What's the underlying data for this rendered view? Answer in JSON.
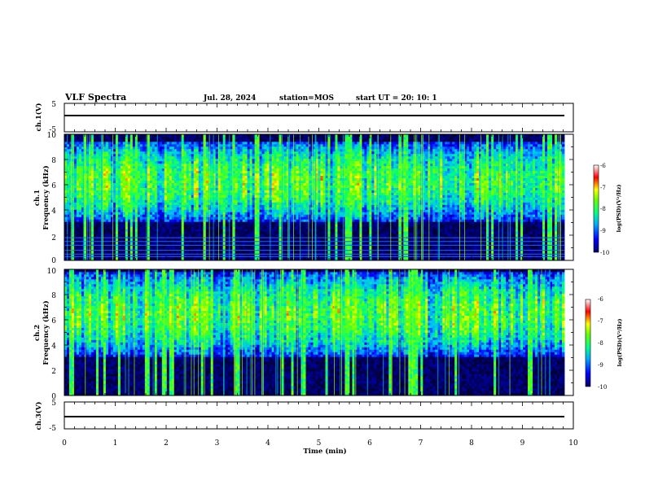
{
  "header": {
    "title": "VLF Spectra",
    "date": "Jul. 28, 2024",
    "station": "station=MOS",
    "start": "start UT =  20: 10: 1"
  },
  "chart_data": [
    {
      "type": "line",
      "name": "voltage-panel-ch1",
      "ylabel": "ch.1(V)",
      "ylim": [
        -5,
        5
      ],
      "yticks": [
        "5",
        "-5"
      ],
      "xlim": [
        0,
        10
      ],
      "x": [
        0,
        10
      ],
      "series": [
        {
          "values": [
            0,
            0
          ]
        }
      ]
    },
    {
      "type": "heatmap",
      "name": "spectrogram-ch1",
      "ylabel": [
        "ch.1",
        "Frequency (kHz)"
      ],
      "xlim": [
        0,
        10
      ],
      "ylim": [
        0,
        10
      ],
      "yticks": [
        "0",
        "2",
        "4",
        "6",
        "8",
        "10"
      ],
      "colorbar": {
        "label": "log(PSD)(V²/Hz)",
        "range": [
          -10,
          -6
        ],
        "ticks": [
          "-6",
          "-7",
          "-8",
          "-9",
          "-10"
        ]
      },
      "band_khz": [
        3.0,
        9.5
      ],
      "peak_khz": 6.3,
      "tone_lines_khz": [
        0.3,
        0.5,
        0.8,
        1.2,
        1.5,
        1.8
      ]
    },
    {
      "type": "heatmap",
      "name": "spectrogram-ch2",
      "ylabel": [
        "ch.2",
        "Frequency (kHz)"
      ],
      "xlim": [
        0,
        10
      ],
      "ylim": [
        0,
        10
      ],
      "yticks": [
        "0",
        "2",
        "4",
        "6",
        "8",
        "10"
      ],
      "colorbar": {
        "label": "log(PSD)(V²/Hz)",
        "range": [
          -10,
          -6
        ],
        "ticks": [
          "-6",
          "-7",
          "-8",
          "-9",
          "-10"
        ]
      },
      "band_khz": [
        3.0,
        9.8
      ],
      "peak_khz": 6.5,
      "tone_lines_khz": []
    },
    {
      "type": "line",
      "name": "voltage-panel-ch3",
      "ylabel": "ch.3(V)",
      "ylim": [
        -5,
        5
      ],
      "yticks": [
        "5",
        "-5"
      ],
      "xlim": [
        0,
        10
      ],
      "x": [
        0,
        10
      ],
      "series": [
        {
          "values": [
            0,
            0
          ]
        }
      ],
      "xlabel": "Time (min)",
      "xticks": [
        "0",
        "1",
        "2",
        "3",
        "4",
        "5",
        "6",
        "7",
        "8",
        "9",
        "10"
      ]
    }
  ],
  "colors": {
    "colormap": [
      "#000066",
      "#0000ff",
      "#00ffff",
      "#00ff00",
      "#ffff00",
      "#ff0000",
      "#ffffff"
    ],
    "background_low": "#000000"
  }
}
